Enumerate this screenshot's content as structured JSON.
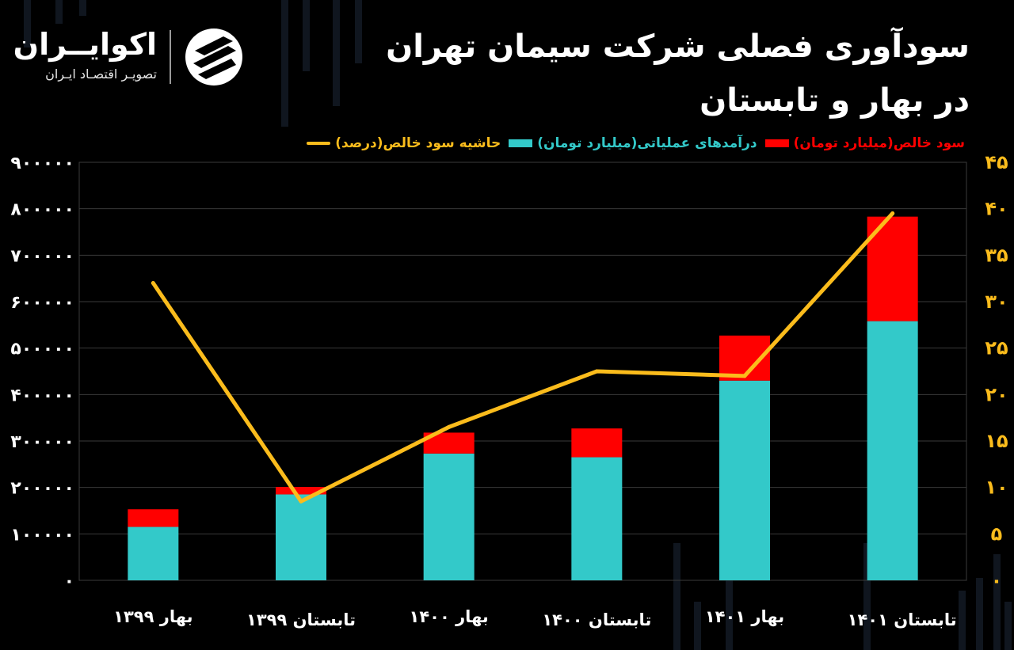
{
  "brand": {
    "name": "اکوایــران",
    "tagline": "تصویـر اقتصـاد ایـران"
  },
  "title": {
    "line1": "سودآوری فصلی شرکت سیمان تهران",
    "line2": "در بهار و تابستان"
  },
  "chart_data": {
    "type": "bar",
    "stacked": true,
    "categories": [
      "بهار ۱۳۹۹",
      "تابستان ۱۳۹۹",
      "بهار ۱۴۰۰",
      "تابستان ۱۴۰۰",
      "بهار ۱۴۰۱",
      "تابستان ۱۴۰۱"
    ],
    "series": [
      {
        "name": "درآمدهای عملیاتی(میلیارد تومان)",
        "type": "bar",
        "axis": "left",
        "color": "#33c9c9",
        "values": [
          115000,
          185000,
          273000,
          265000,
          430000,
          558000
        ]
      },
      {
        "name": "سود خالص(میلیارد تومان)",
        "type": "bar",
        "axis": "left",
        "color": "#ff0000",
        "values": [
          38000,
          16000,
          45000,
          62000,
          97000,
          225000
        ]
      },
      {
        "name": "حاشیه سود خالص(درصد)",
        "type": "line",
        "axis": "right",
        "color": "#fbbc1c",
        "values": [
          32,
          8.5,
          16.5,
          22.5,
          22,
          39.5
        ]
      }
    ],
    "ylim": [
      0,
      900000
    ],
    "yticks": [
      0,
      100000,
      200000,
      300000,
      400000,
      500000,
      600000,
      700000,
      800000,
      900000
    ],
    "ytick_labels": [
      "۰",
      "۱۰۰۰۰۰",
      "۲۰۰۰۰۰",
      "۳۰۰۰۰۰",
      "۴۰۰۰۰۰",
      "۵۰۰۰۰۰",
      "۶۰۰۰۰۰",
      "۷۰۰۰۰۰",
      "۸۰۰۰۰۰",
      "۹۰۰۰۰۰"
    ],
    "y2lim": [
      0,
      45
    ],
    "y2ticks": [
      0,
      5,
      10,
      15,
      20,
      25,
      30,
      35,
      40,
      45
    ],
    "y2tick_labels": [
      "۰",
      "۵",
      "۱۰",
      "۱۵",
      "۲۰",
      "۲۵",
      "۳۰",
      "۳۵",
      "۴۰",
      "۴۵"
    ],
    "grid": true,
    "legend_position": "top"
  }
}
